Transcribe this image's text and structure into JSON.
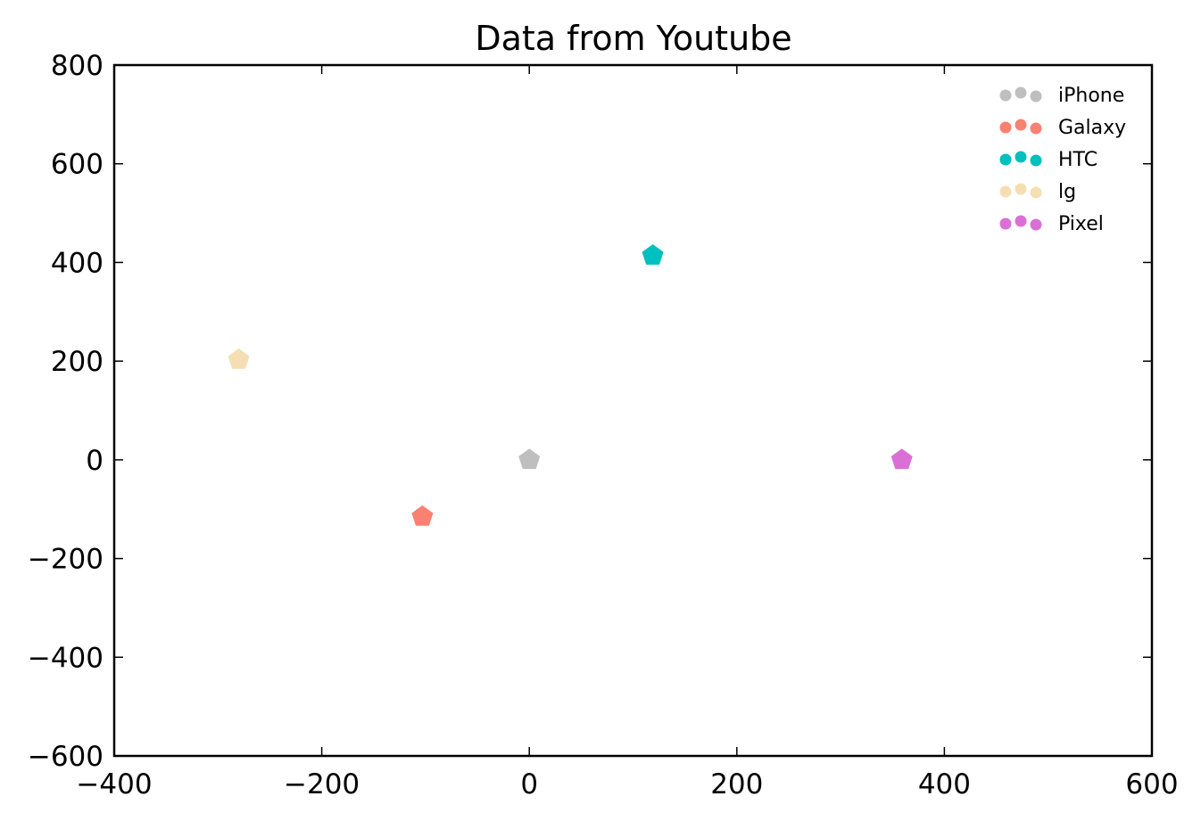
{
  "chart_data": {
    "type": "scatter",
    "title": "Data from Youtube",
    "xlabel": "",
    "ylabel": "",
    "xlim": [
      -400,
      600
    ],
    "ylim": [
      -600,
      800
    ],
    "x_ticks": [
      "−400",
      "−200",
      "0",
      "200",
      "400",
      "600"
    ],
    "x_tick_values": [
      -400,
      -200,
      0,
      200,
      400,
      600
    ],
    "y_ticks": [
      "800",
      "600",
      "400",
      "200",
      "0",
      "−200",
      "−400",
      "−600"
    ],
    "y_tick_values": [
      800,
      600,
      400,
      200,
      0,
      -200,
      -400,
      -600
    ],
    "marker": "pentagon",
    "grid": false,
    "legend_position": "top-right",
    "series": [
      {
        "name": "iPhone",
        "color": "#bfbfbf",
        "points": [
          {
            "x": 0,
            "y": 0
          }
        ]
      },
      {
        "name": "Galaxy",
        "color": "#fa8072",
        "points": [
          {
            "x": -103,
            "y": -115
          }
        ]
      },
      {
        "name": "HTC",
        "color": "#00bfbf",
        "points": [
          {
            "x": 119,
            "y": 414
          }
        ]
      },
      {
        "name": "lg",
        "color": "#f5deb3",
        "points": [
          {
            "x": -280,
            "y": 203
          }
        ]
      },
      {
        "name": "Pixel",
        "color": "#da70d6",
        "points": [
          {
            "x": 359,
            "y": 0
          }
        ]
      }
    ]
  }
}
